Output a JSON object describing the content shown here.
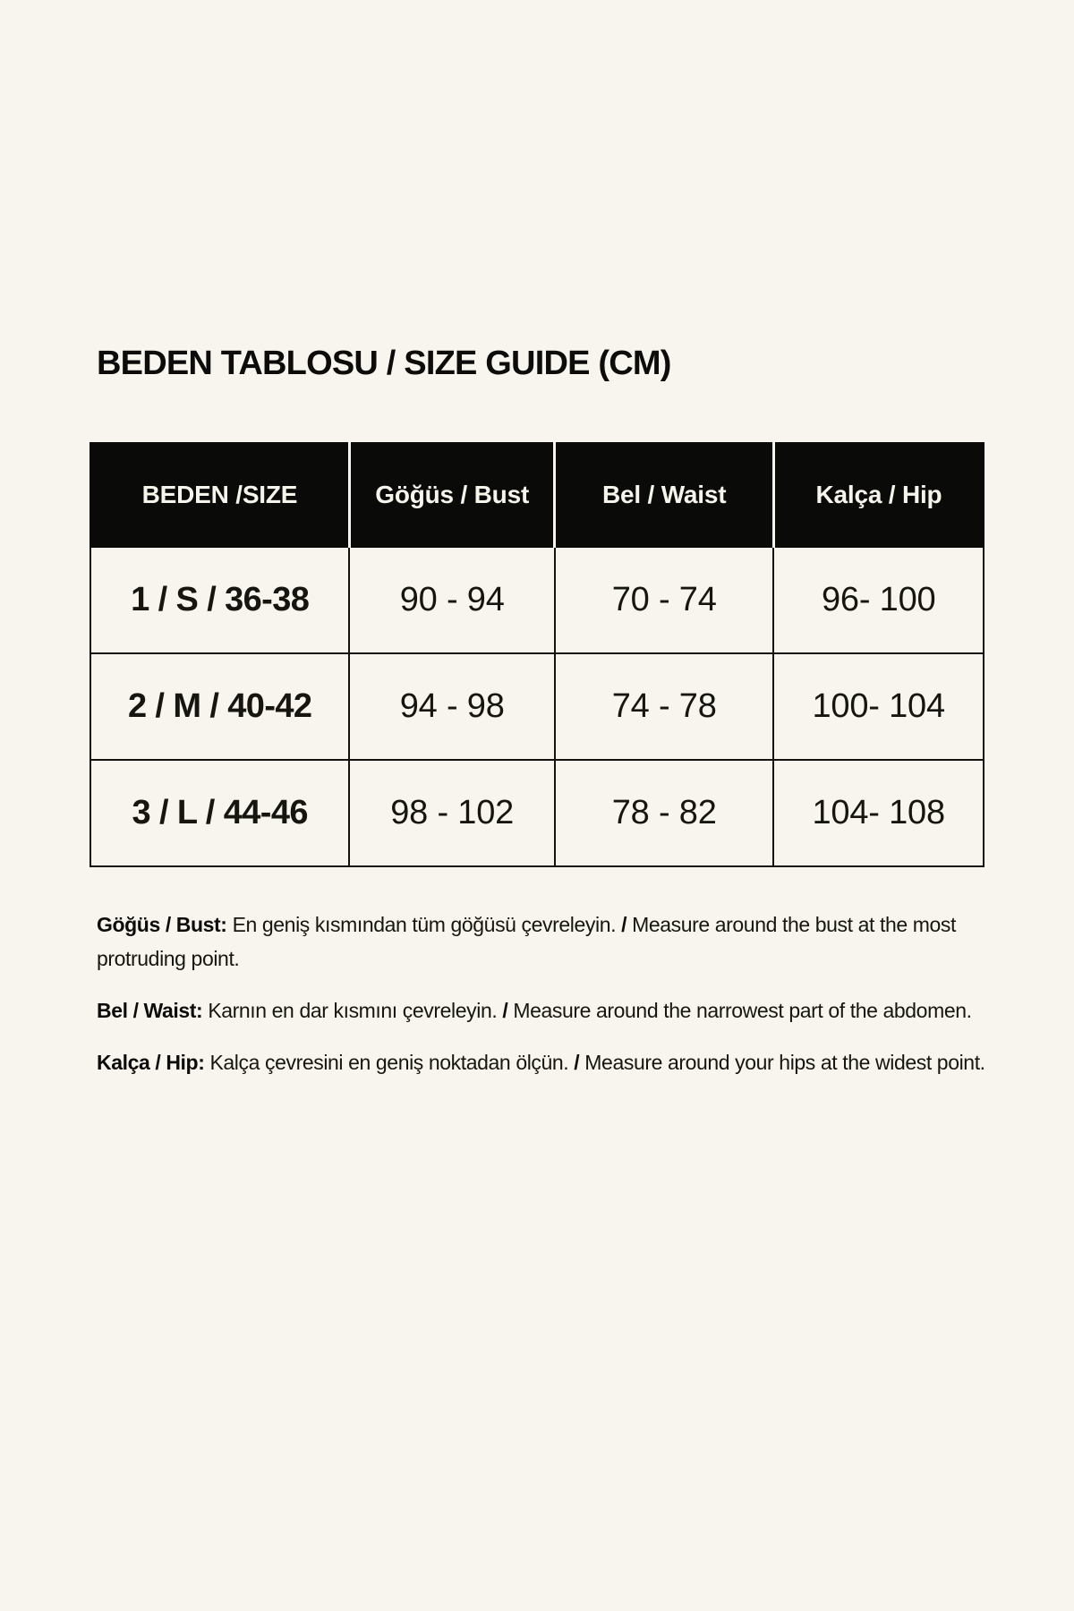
{
  "page": {
    "background_color": "#f7f5ee",
    "header_bg_color": "#0a0a08",
    "border_color": "#14130f"
  },
  "title": "BEDEN TABLOSU / SIZE GUIDE (CM)",
  "table": {
    "headers": {
      "size": "BEDEN /SIZE",
      "bust": "Göğüs / Bust",
      "waist": "Bel / Waist",
      "hip": "Kalça / Hip"
    },
    "rows": [
      {
        "size": "1 / S / 36-38",
        "bust": "90 - 94",
        "waist": "70 - 74",
        "hip": "96- 100"
      },
      {
        "size": "2 / M / 40-42",
        "bust": "94 - 98",
        "waist": "74 - 78",
        "hip": "100- 104"
      },
      {
        "size": "3 / L / 44-46",
        "bust": "98 - 102",
        "waist": "78 - 82",
        "hip": "104- 108"
      }
    ]
  },
  "notes": [
    {
      "label": "Göğüs / Bust:",
      "tr": "En geniş kısmından tüm göğüsü çevreleyin.",
      "sep": "/",
      "en": "Measure around the bust at the most protruding point."
    },
    {
      "label": "Bel / Waist:",
      "tr": "Karnın en dar kısmını çevreleyin.",
      "sep": "/",
      "en": "Measure around the narrowest part of the abdomen."
    },
    {
      "label": "Kalça / Hip:",
      "tr": "Kalça çevresini en geniş noktadan ölçün.",
      "sep": "/",
      "en": "Measure around your hips at the widest point."
    }
  ]
}
